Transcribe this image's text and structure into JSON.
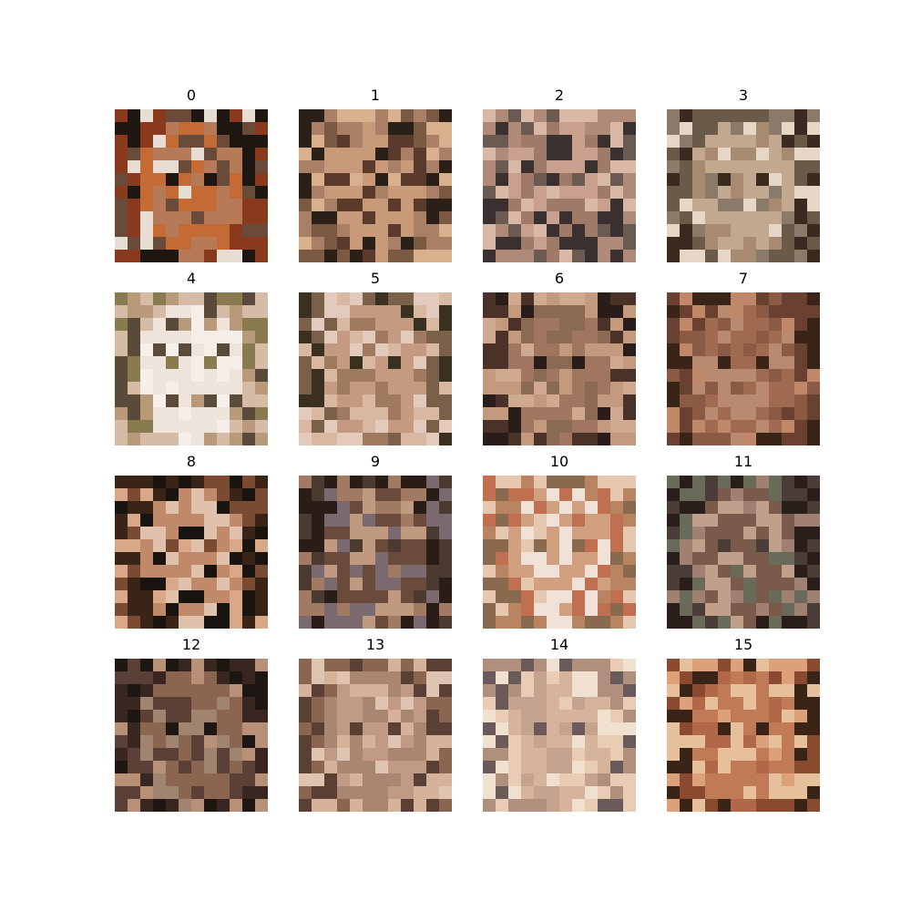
{
  "panels": [
    {
      "label": "0",
      "palette": [
        "#c46a35",
        "#8a3a1c",
        "#e8ddd2",
        "#1e1610",
        "#b67a58",
        "#6a4a38"
      ]
    },
    {
      "label": "1",
      "palette": [
        "#c99a7a",
        "#7a5a42",
        "#2a2018",
        "#d9b08e",
        "#5a3a2a",
        "#a98066"
      ]
    },
    {
      "label": "2",
      "palette": [
        "#c9a08e",
        "#b08a78",
        "#d9b8a6",
        "#6a5a52",
        "#a07a68",
        "#3a3030"
      ]
    },
    {
      "label": "3",
      "palette": [
        "#c2a88e",
        "#6a5a48",
        "#e6d6c6",
        "#3a2a20",
        "#a88a70",
        "#8a7a6a"
      ]
    },
    {
      "label": "4",
      "palette": [
        "#efe4dc",
        "#d6bca6",
        "#b89a7a",
        "#8a7a50",
        "#f6efe9",
        "#5a4a3a"
      ]
    },
    {
      "label": "5",
      "palette": [
        "#c49a80",
        "#7a6048",
        "#e2cabc",
        "#3a3020",
        "#a07a60",
        "#d8b8a0"
      ]
    },
    {
      "label": "6",
      "palette": [
        "#a07660",
        "#4a3228",
        "#c49a7e",
        "#2a1c18",
        "#8a6a52",
        "#d0aa90"
      ]
    },
    {
      "label": "7",
      "palette": [
        "#a06a50",
        "#6a4030",
        "#c08868",
        "#3a2418",
        "#b88a70",
        "#8a5a44"
      ]
    },
    {
      "label": "8",
      "palette": [
        "#c08a6a",
        "#3a2418",
        "#d8a888",
        "#7a4a32",
        "#e0c2ac",
        "#1a1410"
      ]
    },
    {
      "label": "9",
      "palette": [
        "#6a4a3a",
        "#2a1c16",
        "#a07a62",
        "#4a3a30",
        "#c09a80",
        "#7a6a70"
      ]
    },
    {
      "label": "10",
      "palette": [
        "#d0a080",
        "#b88462",
        "#e6c8b0",
        "#8a6a4e",
        "#f0e2d6",
        "#c07050"
      ]
    },
    {
      "label": "11",
      "palette": [
        "#7a5a4a",
        "#2a1e1a",
        "#a08070",
        "#4a3c36",
        "#c0a08a",
        "#6a6a5a"
      ]
    },
    {
      "label": "12",
      "palette": [
        "#8a6650",
        "#3a2620",
        "#b89078",
        "#1e1612",
        "#a08470",
        "#5a4036"
      ]
    },
    {
      "label": "13",
      "palette": [
        "#c09a84",
        "#8a6650",
        "#e0c4b2",
        "#5a4034",
        "#a88670",
        "#d6b29a"
      ]
    },
    {
      "label": "14",
      "palette": [
        "#d6b49c",
        "#b0907c",
        "#f0e0d0",
        "#6a5a5a",
        "#c4a48e",
        "#e8ccb4"
      ]
    },
    {
      "label": "15",
      "palette": [
        "#c07a56",
        "#8a4a30",
        "#dca07a",
        "#3a2418",
        "#b06848",
        "#e6c09a"
      ]
    }
  ]
}
